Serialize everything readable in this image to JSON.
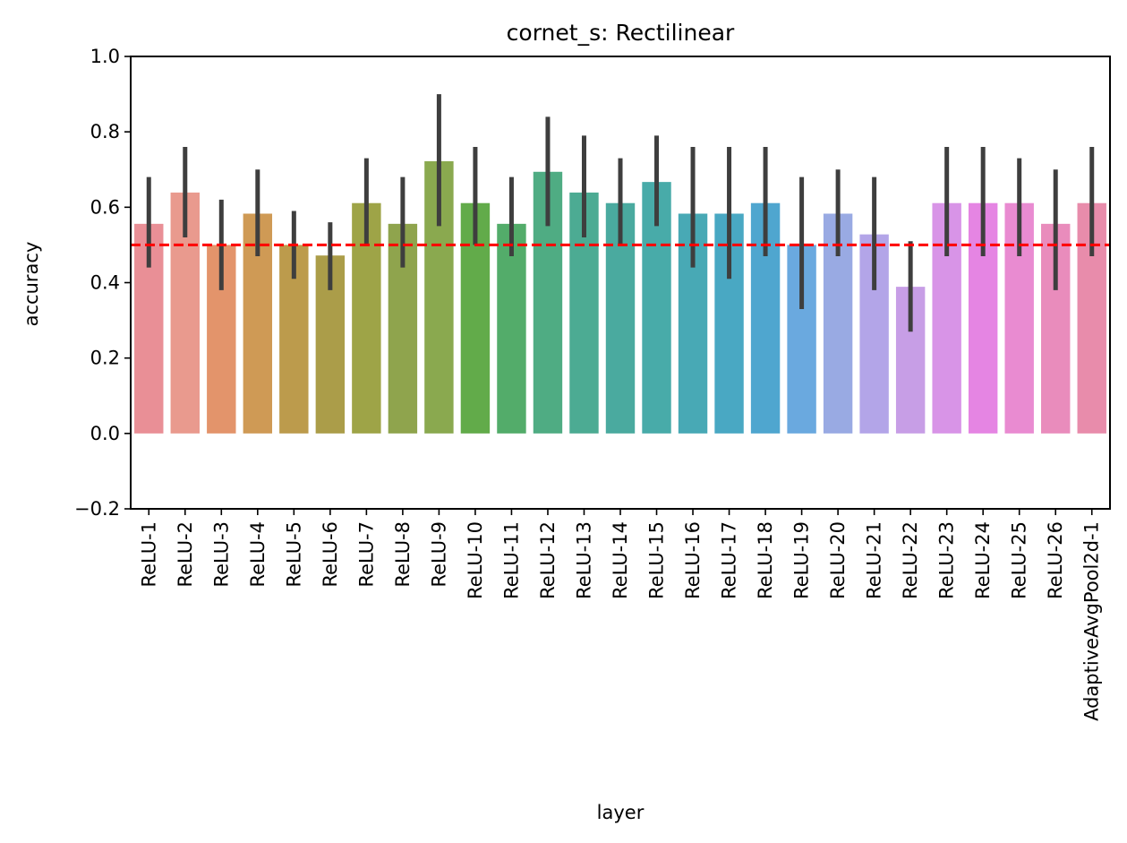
{
  "chart_data": {
    "type": "bar",
    "title": "cornet_s: Rectilinear",
    "xlabel": "layer",
    "ylabel": "accuracy",
    "ylim": [
      -0.2,
      1.0
    ],
    "yticks": [
      "−0.2",
      "0.0",
      "0.2",
      "0.4",
      "0.6",
      "0.8",
      "1.0"
    ],
    "ytick_values": [
      -0.2,
      0.0,
      0.2,
      0.4,
      0.6,
      0.8,
      1.0
    ],
    "categories": [
      "ReLU-1",
      "ReLU-2",
      "ReLU-3",
      "ReLU-4",
      "ReLU-5",
      "ReLU-6",
      "ReLU-7",
      "ReLU-8",
      "ReLU-9",
      "ReLU-10",
      "ReLU-11",
      "ReLU-12",
      "ReLU-13",
      "ReLU-14",
      "ReLU-15",
      "ReLU-16",
      "ReLU-17",
      "ReLU-18",
      "ReLU-19",
      "ReLU-20",
      "ReLU-21",
      "ReLU-22",
      "ReLU-23",
      "ReLU-24",
      "ReLU-25",
      "ReLU-26",
      "AdaptiveAvgPool2d-1"
    ],
    "values": [
      0.556,
      0.639,
      0.5,
      0.583,
      0.5,
      0.472,
      0.611,
      0.556,
      0.722,
      0.611,
      0.556,
      0.694,
      0.639,
      0.611,
      0.667,
      0.583,
      0.583,
      0.611,
      0.5,
      0.583,
      0.528,
      0.389,
      0.611,
      0.611,
      0.611,
      0.556,
      0.611
    ],
    "error_low": [
      0.44,
      0.52,
      0.38,
      0.47,
      0.41,
      0.38,
      0.5,
      0.44,
      0.55,
      0.5,
      0.47,
      0.55,
      0.52,
      0.5,
      0.55,
      0.44,
      0.41,
      0.47,
      0.33,
      0.47,
      0.38,
      0.27,
      0.47,
      0.47,
      0.47,
      0.38,
      0.47
    ],
    "error_high": [
      0.68,
      0.76,
      0.62,
      0.7,
      0.59,
      0.56,
      0.73,
      0.68,
      0.9,
      0.76,
      0.68,
      0.84,
      0.79,
      0.73,
      0.79,
      0.76,
      0.76,
      0.76,
      0.68,
      0.7,
      0.68,
      0.51,
      0.76,
      0.76,
      0.73,
      0.7,
      0.76
    ],
    "colors": [
      "#e98f96",
      "#e99a8e",
      "#e3946b",
      "#cf9a55",
      "#bc9b4c",
      "#ab9d49",
      "#9ea447",
      "#8fa44d",
      "#8aa94f",
      "#62ab4a",
      "#53ac6a",
      "#4fac83",
      "#4cab93",
      "#4aaa9f",
      "#48aba9",
      "#48a9b5",
      "#49a8c3",
      "#4fa6cf",
      "#6aa9df",
      "#99aae3",
      "#b3a5e8",
      "#c79ee6",
      "#d894e7",
      "#e585e3",
      "#e98bd1",
      "#e98cbc",
      "#e88cab"
    ],
    "reference_line": {
      "value": 0.5,
      "style": "dashed",
      "color": "#ff0000"
    },
    "grid": false,
    "errorbar_color": "#3e3e3e"
  }
}
